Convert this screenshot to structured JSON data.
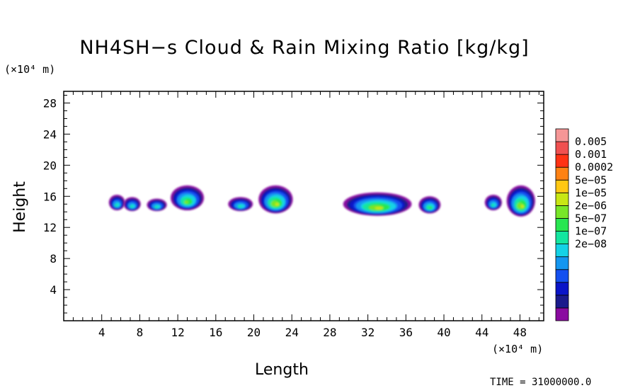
{
  "chart_data": {
    "type": "heatmap",
    "title": "NH4SH−s Cloud & Rain Mixing Ratio [kg/kg]",
    "xlabel": "Length",
    "ylabel": "Height",
    "x_unit": "(×10⁴ m)",
    "y_unit": "(×10⁴ m)",
    "xlim": [
      0,
      50.5
    ],
    "ylim": [
      0,
      29.5
    ],
    "x_ticks": [
      "4",
      "8",
      "12",
      "16",
      "20",
      "24",
      "28",
      "32",
      "36",
      "40",
      "44",
      "48"
    ],
    "y_ticks": [
      "4",
      "8",
      "12",
      "16",
      "20",
      "24",
      "28"
    ],
    "colorbar": {
      "labels": [
        "0.005",
        "0.001",
        "0.0002",
        "5e−05",
        "1e−05",
        "2e−06",
        "5e−07",
        "1e−07",
        "2e−08"
      ],
      "colors": [
        "#8a0aa0",
        "#1a1a8c",
        "#0a14c8",
        "#1450f0",
        "#1496f0",
        "#14d2e6",
        "#14e6a0",
        "#28e650",
        "#78e628",
        "#c8e614",
        "#ffc814",
        "#ff8214",
        "#ff3214",
        "#f05050",
        "#f59696"
      ]
    },
    "cells": [
      {
        "x": 5.6,
        "y": 15.2,
        "w": 1.7,
        "h": 2.0,
        "level": 6
      },
      {
        "x": 7.2,
        "y": 15.0,
        "w": 1.8,
        "h": 1.8,
        "level": 6
      },
      {
        "x": 9.8,
        "y": 14.9,
        "w": 2.1,
        "h": 1.6,
        "level": 6
      },
      {
        "x": 13.0,
        "y": 15.8,
        "w": 3.5,
        "h": 3.2,
        "level": 8
      },
      {
        "x": 18.6,
        "y": 15.0,
        "w": 2.6,
        "h": 1.8,
        "level": 6
      },
      {
        "x": 22.3,
        "y": 15.6,
        "w": 3.6,
        "h": 3.6,
        "level": 9
      },
      {
        "x": 33.0,
        "y": 15.0,
        "w": 7.2,
        "h": 3.0,
        "level": 9
      },
      {
        "x": 38.5,
        "y": 14.9,
        "w": 2.3,
        "h": 2.2,
        "level": 7
      },
      {
        "x": 45.2,
        "y": 15.2,
        "w": 1.8,
        "h": 2.0,
        "level": 6
      },
      {
        "x": 48.1,
        "y": 15.4,
        "w": 3.0,
        "h": 4.0,
        "level": 9
      }
    ]
  },
  "time_label": "TIME = 31000000.0"
}
